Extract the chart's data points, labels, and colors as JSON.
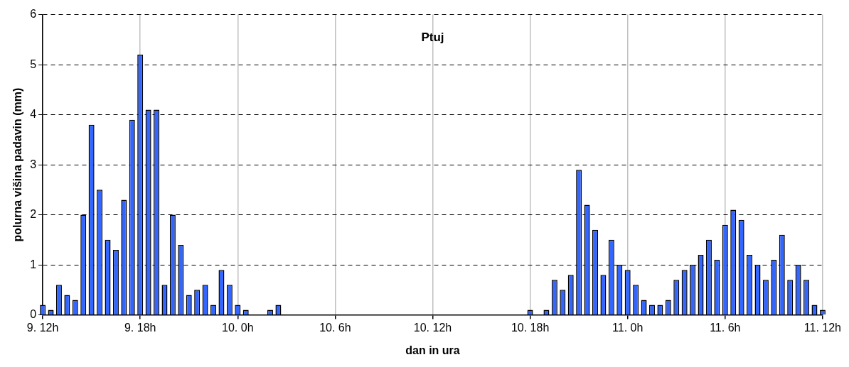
{
  "chart_data": {
    "type": "bar",
    "title": "Ptuj",
    "xlabel": "dan in ura",
    "ylabel": "polurna višina padavin (mm)",
    "categories": [
      "9. 12h",
      null,
      null,
      null,
      null,
      null,
      null,
      null,
      null,
      null,
      null,
      null,
      "9. 18h",
      null,
      null,
      null,
      null,
      null,
      null,
      null,
      null,
      null,
      null,
      null,
      "10. 0h",
      null,
      null,
      null,
      null,
      null,
      null,
      null,
      null,
      null,
      null,
      null,
      "10. 6h",
      null,
      null,
      null,
      null,
      null,
      null,
      null,
      null,
      null,
      null,
      null,
      "10. 12h",
      null,
      null,
      null,
      null,
      null,
      null,
      null,
      null,
      null,
      null,
      null,
      "10. 18h",
      null,
      null,
      null,
      null,
      null,
      null,
      null,
      null,
      null,
      null,
      null,
      "11. 0h",
      null,
      null,
      null,
      null,
      null,
      null,
      null,
      null,
      null,
      null,
      null,
      "11. 6h",
      null,
      null,
      null,
      null,
      null,
      null,
      null,
      null,
      null,
      null,
      null,
      "11. 12h"
    ],
    "values": [
      0.2,
      0.1,
      0.6,
      0.4,
      0.3,
      2.0,
      3.8,
      2.5,
      1.5,
      1.3,
      2.3,
      3.9,
      5.2,
      4.1,
      4.1,
      0.6,
      2.0,
      1.4,
      0.4,
      0.5,
      0.6,
      0.2,
      0.9,
      0.6,
      0.2,
      0.1,
      0,
      0,
      0.1,
      0.2,
      0,
      0,
      0,
      0,
      0,
      0,
      0,
      0,
      0,
      0,
      0,
      0,
      0,
      0,
      0,
      0,
      0,
      0,
      0,
      0,
      0,
      0,
      0,
      0,
      0,
      0,
      0,
      0,
      0,
      0,
      0.1,
      0,
      0.1,
      0.7,
      0.5,
      0.8,
      2.9,
      2.2,
      1.7,
      0.8,
      1.5,
      1.0,
      0.9,
      0.6,
      0.3,
      0.2,
      0.2,
      0.3,
      0.7,
      0.9,
      1.0,
      1.2,
      1.5,
      1.1,
      1.8,
      2.1,
      1.9,
      1.2,
      1.0,
      0.7,
      1.1,
      1.6,
      0.7,
      1.0,
      0.7,
      0.2,
      0.1
    ],
    "color": "#3366ff",
    "ylim": [
      0,
      6
    ],
    "yticks": [
      0,
      1,
      2,
      3,
      4,
      5,
      6
    ],
    "grid": true
  }
}
